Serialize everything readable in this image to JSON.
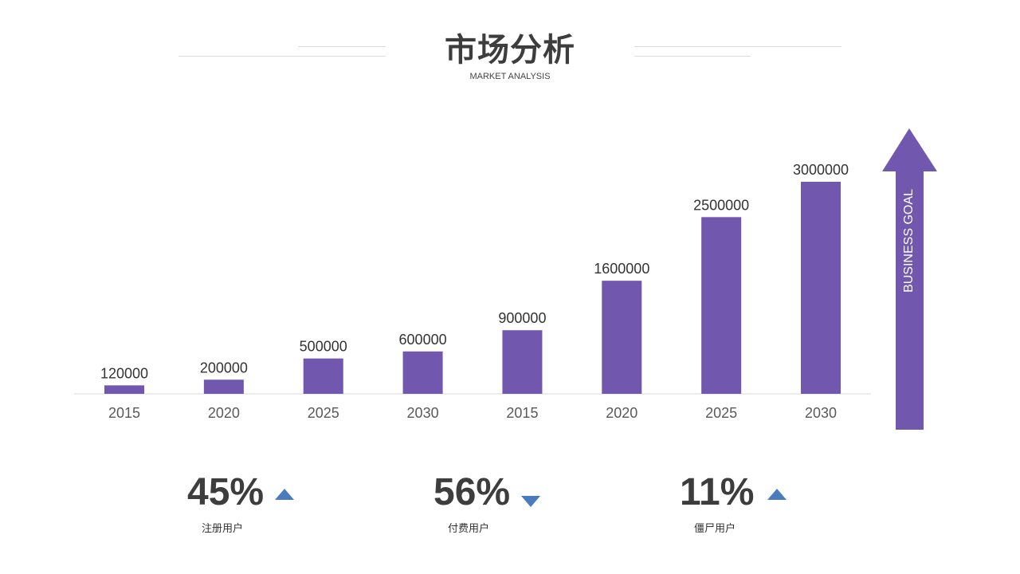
{
  "header": {
    "title": "市场分析",
    "subtitle": "MARKET ANALYSIS"
  },
  "colors": {
    "bar": "#7158ae",
    "arrow": "#7158ae",
    "triangle": "#4a7bbd",
    "axis": "#d9d9d9"
  },
  "chart_data": {
    "type": "bar",
    "categories": [
      "2015",
      "2020",
      "2025",
      "2030",
      "2015",
      "2020",
      "2025",
      "2030"
    ],
    "values": [
      120000,
      200000,
      500000,
      600000,
      900000,
      1600000,
      2500000,
      3000000
    ],
    "title": "",
    "xlabel": "",
    "ylabel": "",
    "ylim": [
      0,
      3000000
    ],
    "grid": false,
    "data_labels": true
  },
  "goal_arrow": {
    "label": "BUSINESS GOAL"
  },
  "stats": [
    {
      "value": "45%",
      "trend": "up",
      "label": "注册用户"
    },
    {
      "value": "56%",
      "trend": "down",
      "label": "付费用户"
    },
    {
      "value": "11%",
      "trend": "up",
      "label": "僵尸用户"
    }
  ]
}
